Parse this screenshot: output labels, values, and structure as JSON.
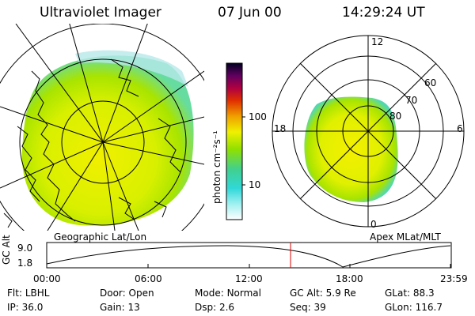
{
  "header": {
    "title": "Ultraviolet Imager",
    "date": "07 Jun 00",
    "time": "14:29:24 UT"
  },
  "colorbar": {
    "unit_label": "photon cm⁻²s⁻¹",
    "tick_100": "100",
    "tick_10": "10"
  },
  "left_panel": {
    "caption": "Geographic Lat/Lon"
  },
  "right_panel": {
    "caption": "Apex MLat/MLT",
    "mlt_12": "12",
    "mlt_18": "18",
    "mlt_6": "6",
    "mlt_0": "0",
    "lat_60": "60",
    "lat_70": "70",
    "lat_80": "80"
  },
  "altitude_plot": {
    "ylabel": "GC Alt",
    "ytick_top": "9.0",
    "ytick_bottom": "1.8",
    "x_ticks": [
      "00:00",
      "06:00",
      "12:00",
      "18:00",
      "23:59"
    ]
  },
  "footer": {
    "row1": [
      {
        "label": "Flt:",
        "value": "LBHL"
      },
      {
        "label": "Door:",
        "value": "Open"
      },
      {
        "label": "Mode:",
        "value": "Normal"
      },
      {
        "label": "GC Alt:",
        "value": "5.9 Re"
      },
      {
        "label": "GLat:",
        "value": "88.3"
      }
    ],
    "row2": [
      {
        "label": "IP:",
        "value": "36.0"
      },
      {
        "label": "Gain:",
        "value": "13"
      },
      {
        "label": "Dsp:",
        "value": "2.6"
      },
      {
        "label": "Seq:",
        "value": "39"
      },
      {
        "label": "GLon:",
        "value": "116.7"
      }
    ]
  },
  "colors": {
    "accent_red": "#e00000",
    "image_yellow": "#e8f000",
    "image_green": "#9ee000",
    "image_cyan": "#40d8d0"
  }
}
